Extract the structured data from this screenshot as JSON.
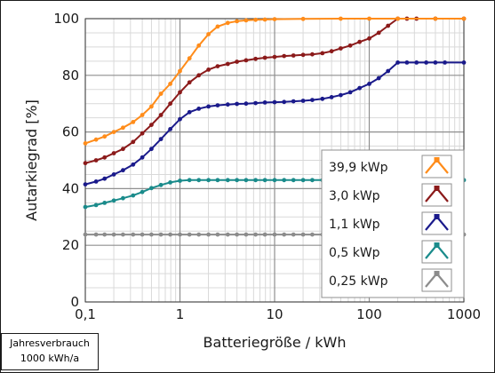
{
  "chart_data": {
    "type": "line",
    "xlabel": "Batteriegröße / kWh",
    "ylabel": "Autarkiegrad [%]",
    "xscale": "log",
    "xlim": [
      0.1,
      1000
    ],
    "ylim": [
      0,
      100
    ],
    "grid": true,
    "legend_position": "right",
    "x_ticks": [
      0.1,
      1,
      10,
      100,
      1000
    ],
    "x_tick_labels": [
      "0,1",
      "1",
      "10",
      "100",
      "1000"
    ],
    "y_ticks": [
      0,
      20,
      40,
      60,
      80,
      100
    ],
    "y_tick_labels": [
      "0",
      "20",
      "40",
      "60",
      "80",
      "100"
    ],
    "series": [
      {
        "name": "39,9 kWp",
        "color": "#ff8c1a",
        "x": [
          0.1,
          0.13,
          0.16,
          0.2,
          0.25,
          0.32,
          0.4,
          0.5,
          0.63,
          0.79,
          1,
          1.26,
          1.58,
          2,
          2.5,
          3.2,
          4,
          5,
          6.3,
          7.9,
          10,
          20,
          50,
          100,
          200,
          500,
          1000
        ],
        "values": [
          56,
          57.3,
          58.4,
          60,
          61.5,
          63.5,
          66,
          69,
          73.5,
          77,
          81.5,
          86,
          90.5,
          94.5,
          97.2,
          98.5,
          99.1,
          99.4,
          99.6,
          99.7,
          99.8,
          99.9,
          100,
          100,
          100,
          100,
          100
        ]
      },
      {
        "name": "3,0 kWp",
        "color": "#8b1a1a",
        "x": [
          0.1,
          0.13,
          0.16,
          0.2,
          0.25,
          0.32,
          0.4,
          0.5,
          0.63,
          0.79,
          1,
          1.26,
          1.58,
          2,
          2.5,
          3.2,
          4,
          5,
          6.3,
          7.9,
          10,
          12.6,
          15.8,
          20,
          25,
          32,
          40,
          50,
          63,
          79,
          100,
          126,
          158,
          200,
          250,
          316,
          500,
          1000
        ],
        "values": [
          49,
          50,
          51,
          52.5,
          54,
          56.5,
          59.5,
          62.5,
          66,
          70,
          74,
          77.5,
          80,
          82,
          83.2,
          84,
          84.8,
          85.3,
          85.8,
          86.2,
          86.5,
          86.8,
          87,
          87.2,
          87.4,
          87.8,
          88.5,
          89.5,
          90.5,
          91.8,
          93,
          95,
          97.5,
          100,
          100,
          100,
          100,
          100
        ]
      },
      {
        "name": "1,1 kWp",
        "color": "#1a1a8b",
        "x": [
          0.1,
          0.13,
          0.16,
          0.2,
          0.25,
          0.32,
          0.4,
          0.5,
          0.63,
          0.79,
          1,
          1.26,
          1.58,
          2,
          2.5,
          3.2,
          4,
          5,
          6.3,
          7.9,
          10,
          12.6,
          15.8,
          20,
          25,
          32,
          40,
          50,
          63,
          79,
          100,
          126,
          158,
          200,
          250,
          316,
          400,
          500,
          630,
          1000
        ],
        "values": [
          41.5,
          42.5,
          43.5,
          45,
          46.5,
          48.5,
          51,
          54,
          57.5,
          61,
          64.5,
          67,
          68.2,
          69,
          69.4,
          69.7,
          69.9,
          70,
          70.2,
          70.4,
          70.5,
          70.6,
          70.8,
          71,
          71.3,
          71.7,
          72.3,
          73,
          74,
          75.5,
          77,
          79,
          81.5,
          84.5,
          84.5,
          84.5,
          84.5,
          84.5,
          84.5,
          84.5
        ]
      },
      {
        "name": "0,5 kWp",
        "color": "#1a8b8b",
        "x": [
          0.1,
          0.13,
          0.16,
          0.2,
          0.25,
          0.32,
          0.4,
          0.5,
          0.63,
          0.79,
          1,
          1.26,
          1.58,
          2,
          2.5,
          3.2,
          4,
          5,
          6.3,
          7.9,
          10,
          12.6,
          15.8,
          20,
          25,
          32,
          40,
          50,
          63,
          79,
          100,
          126,
          158,
          200,
          250,
          316,
          400,
          500,
          630,
          1000
        ],
        "values": [
          33.5,
          34.2,
          35,
          35.8,
          36.6,
          37.6,
          38.8,
          40.2,
          41.3,
          42.2,
          42.8,
          43,
          43,
          43,
          43,
          43,
          43,
          43,
          43,
          43,
          43,
          43,
          43,
          43,
          43,
          43,
          43,
          43,
          43,
          43,
          43,
          43,
          43,
          43,
          43,
          43,
          43,
          43,
          43,
          43
        ]
      },
      {
        "name": "0,25 kWp",
        "color": "#8c8c8c",
        "x": [
          0.1,
          0.13,
          0.16,
          0.2,
          0.25,
          0.32,
          0.4,
          0.5,
          0.63,
          0.79,
          1,
          1.26,
          1.58,
          2,
          2.5,
          3.2,
          4,
          5,
          6.3,
          7.9,
          10,
          12.6,
          15.8,
          20,
          25,
          32,
          40,
          50,
          63,
          79,
          100,
          126,
          158,
          200,
          250,
          316,
          400,
          500,
          630,
          1000
        ],
        "values": [
          23.8,
          23.8,
          23.8,
          23.8,
          23.8,
          23.8,
          23.8,
          23.8,
          23.8,
          23.8,
          23.8,
          23.8,
          23.8,
          23.8,
          23.8,
          23.8,
          23.8,
          23.8,
          23.8,
          23.8,
          23.8,
          23.8,
          23.8,
          23.8,
          23.8,
          23.8,
          23.8,
          23.8,
          23.8,
          23.8,
          23.8,
          23.8,
          23.8,
          23.8,
          23.8,
          23.8,
          23.8,
          23.8,
          23.8,
          23.8
        ]
      }
    ]
  },
  "note": {
    "line1": "Jahresverbrauch",
    "line2": "1000 kWh/a"
  }
}
